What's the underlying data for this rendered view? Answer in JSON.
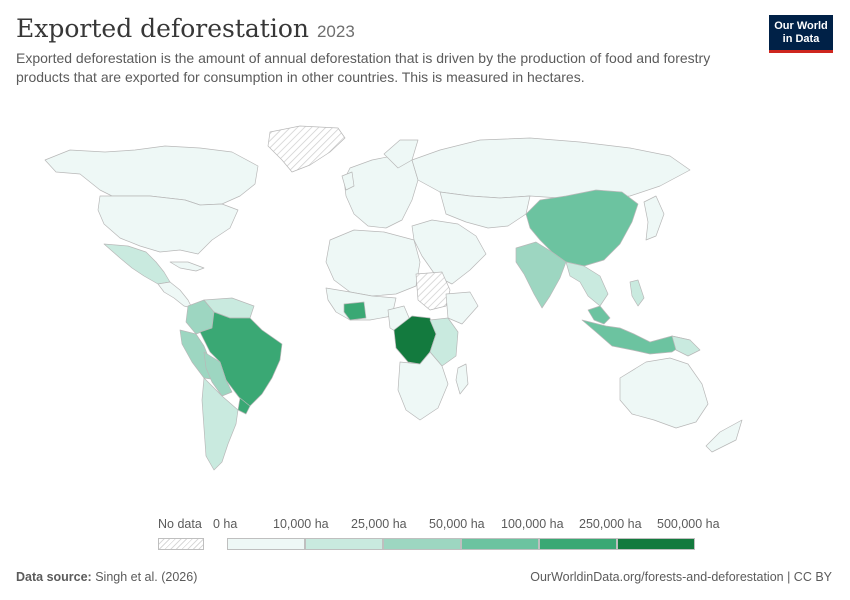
{
  "header": {
    "title": "Exported deforestation",
    "year": "2023",
    "subtitle": "Exported deforestation is the amount of annual deforestation that is driven by the production of food and forestry products that are exported for consumption in other countries. This is measured in hectares."
  },
  "logo": {
    "line1": "Our World",
    "line2": "in Data"
  },
  "legend": {
    "no_data_label": "No data",
    "bins": [
      {
        "label": "0 ha",
        "color": "#eef8f6"
      },
      {
        "label": "10,000 ha",
        "color": "#c9eadf"
      },
      {
        "label": "25,000 ha",
        "color": "#9dd6c1"
      },
      {
        "label": "50,000 ha",
        "color": "#6cc3a0"
      },
      {
        "label": "100,000 ha",
        "color": "#3aa874"
      },
      {
        "label": "250,000 ha",
        "color": "#137a3e"
      },
      {
        "label": "500,000 ha",
        "color": ""
      }
    ]
  },
  "colors": {
    "bin0": "#eef8f6",
    "bin1": "#c9eadf",
    "bin2": "#9dd6c1",
    "bin3": "#6cc3a0",
    "bin4": "#3aa874",
    "bin5": "#137a3e",
    "border": "#b8b8b8",
    "no_data_hatch": "#d9d9d9"
  },
  "footer": {
    "source_prefix": "Data source:",
    "source_text": "Singh et al. (2026)",
    "right_text": "OurWorldinData.org/forests-and-deforestation | CC BY"
  }
}
